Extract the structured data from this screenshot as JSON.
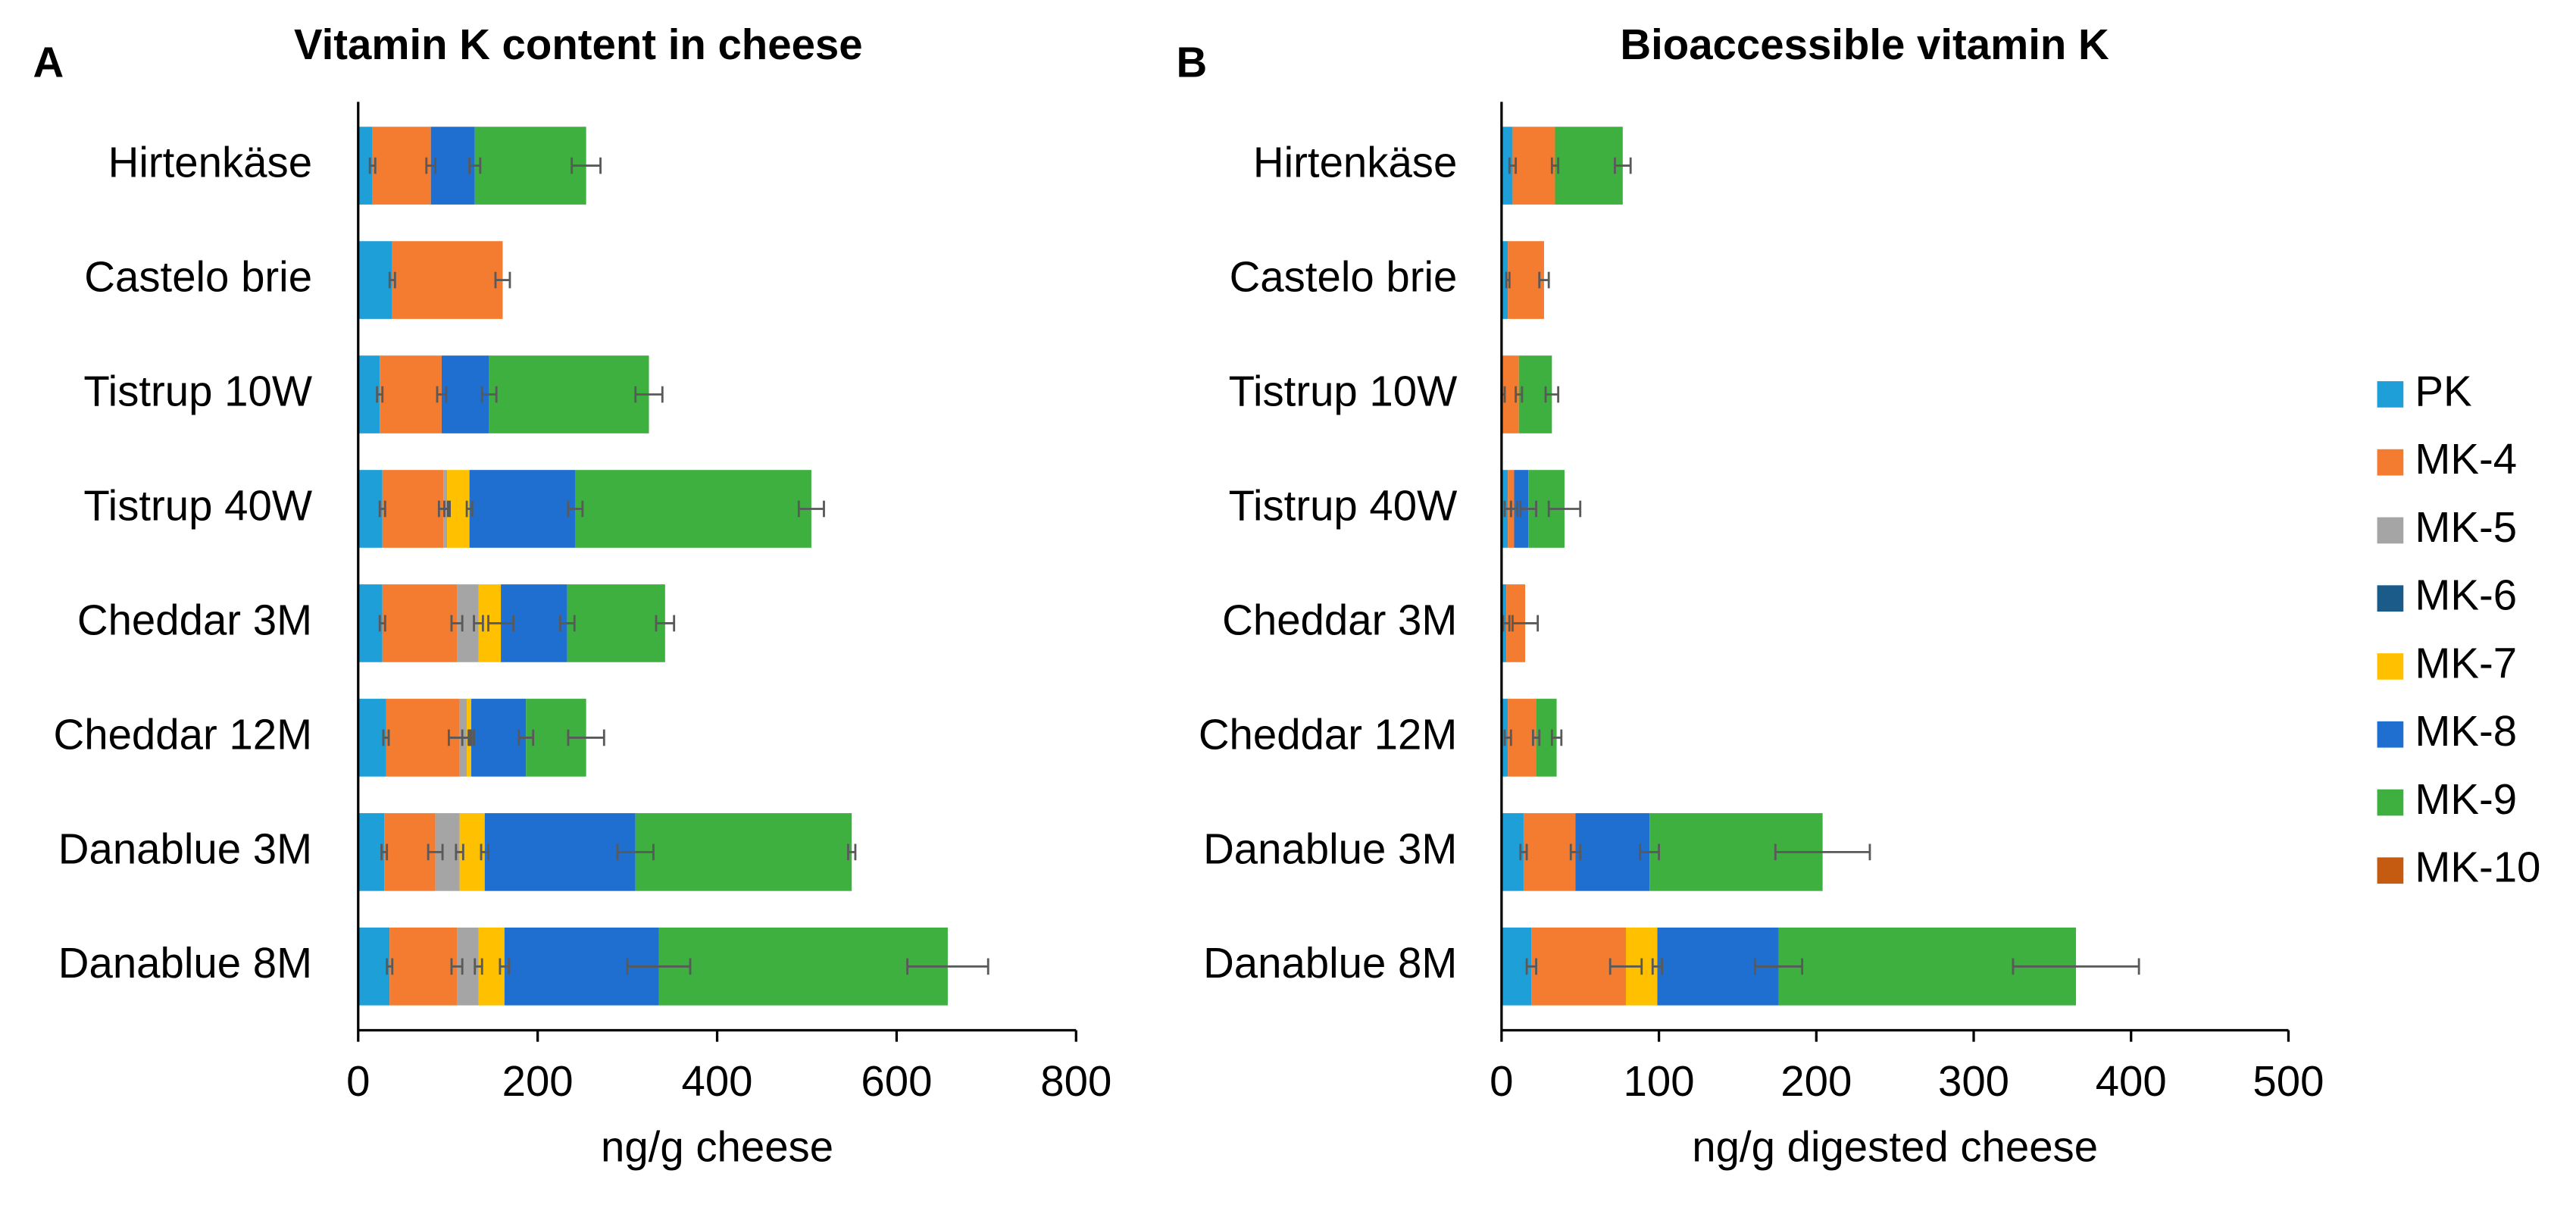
{
  "chart_data": [
    {
      "type": "bar",
      "orientation": "horizontal",
      "stacked": true,
      "panel": "A",
      "title": "Vitamin K content in cheese",
      "x_label": "ng/g cheese",
      "categories": [
        "Hirtenkäse",
        "Castelo brie",
        "Tistrup 10W",
        "Tistrup 40W",
        "Cheddar 3M",
        "Cheddar 12M",
        "Danablue 3M",
        "Danablue 8M"
      ],
      "xlim": [
        0,
        800
      ],
      "xticks": [
        0,
        200,
        400,
        600,
        800
      ],
      "series": [
        {
          "name": "PK",
          "color": "#1f9fd8",
          "values": [
            16,
            38,
            24,
            27,
            27,
            31,
            29,
            35
          ],
          "errors": [
            3,
            3,
            3,
            3,
            3,
            3,
            3,
            3
          ]
        },
        {
          "name": "MK-4",
          "color": "#f47c30",
          "values": [
            65,
            123,
            69,
            68,
            83,
            82,
            57,
            75
          ],
          "errors": [
            5,
            8,
            5,
            5,
            6,
            12,
            8,
            6
          ]
        },
        {
          "name": "MK-5",
          "color": "#a5a5a5",
          "values": [
            0,
            0,
            0,
            4,
            24,
            8,
            27,
            24
          ],
          "errors": [
            null,
            null,
            null,
            3,
            5,
            5,
            4,
            4
          ]
        },
        {
          "name": "MK-6",
          "color": "#1b5b8a",
          "values": [
            0,
            0,
            0,
            0,
            0,
            0,
            0,
            0
          ],
          "errors": [
            null,
            null,
            null,
            null,
            null,
            null,
            null,
            null
          ]
        },
        {
          "name": "MK-7",
          "color": "#ffc000",
          "values": [
            0,
            0,
            0,
            25,
            25,
            5,
            28,
            29
          ],
          "errors": [
            null,
            null,
            null,
            3,
            14,
            3,
            4,
            5
          ]
        },
        {
          "name": "MK-8",
          "color": "#1f6fd0",
          "values": [
            49,
            0,
            53,
            118,
            74,
            61,
            168,
            172
          ],
          "errors": [
            6,
            null,
            8,
            8,
            8,
            8,
            20,
            35
          ]
        },
        {
          "name": "MK-9",
          "color": "#3eb040",
          "values": [
            124,
            0,
            178,
            263,
            109,
            67,
            241,
            322
          ],
          "errors": [
            16,
            null,
            15,
            14,
            10,
            20,
            4,
            45
          ]
        },
        {
          "name": "MK-10",
          "color": "#c55a11",
          "values": [
            0,
            0,
            0,
            0,
            0,
            0,
            0,
            0
          ],
          "errors": [
            null,
            null,
            null,
            null,
            null,
            null,
            null,
            null
          ]
        }
      ]
    },
    {
      "type": "bar",
      "orientation": "horizontal",
      "stacked": true,
      "panel": "B",
      "title": "Bioaccessible vitamin K",
      "x_label": "ng/g digested cheese",
      "legend": "right",
      "categories": [
        "Hirtenkäse",
        "Castelo brie",
        "Tistrup 10W",
        "Tistrup 40W",
        "Cheddar 3M",
        "Cheddar 12M",
        "Danablue 3M",
        "Danablue 8M"
      ],
      "xlim": [
        0,
        500
      ],
      "xticks": [
        0,
        100,
        200,
        300,
        400,
        500
      ],
      "series": [
        {
          "name": "PK",
          "color": "#1f9fd8",
          "values": [
            7,
            4,
            1,
            4,
            3,
            4,
            14,
            19
          ],
          "errors": [
            2,
            1,
            1,
            2,
            2,
            2,
            2,
            3
          ]
        },
        {
          "name": "MK-4",
          "color": "#f47c30",
          "values": [
            27,
            23,
            10,
            4,
            12,
            18,
            33,
            60
          ],
          "errors": [
            2,
            3,
            2,
            2,
            8,
            2,
            3,
            10
          ]
        },
        {
          "name": "MK-5",
          "color": "#a5a5a5",
          "values": [
            0,
            0,
            0,
            0,
            0,
            0,
            0,
            0
          ],
          "errors": [
            null,
            null,
            null,
            null,
            null,
            null,
            null,
            null
          ]
        },
        {
          "name": "MK-6",
          "color": "#1b5b8a",
          "values": [
            0,
            0,
            0,
            0,
            0,
            0,
            0,
            0
          ],
          "errors": [
            null,
            null,
            null,
            null,
            null,
            null,
            null,
            null
          ]
        },
        {
          "name": "MK-7",
          "color": "#ffc000",
          "values": [
            0,
            0,
            0,
            0,
            0,
            0,
            0,
            20
          ],
          "errors": [
            null,
            null,
            null,
            null,
            null,
            null,
            null,
            3
          ]
        },
        {
          "name": "MK-8",
          "color": "#1f6fd0",
          "values": [
            0,
            0,
            0,
            9,
            0,
            0,
            47,
            77
          ],
          "errors": [
            null,
            null,
            null,
            5,
            null,
            null,
            6,
            15
          ]
        },
        {
          "name": "MK-9",
          "color": "#3eb040",
          "values": [
            43,
            0,
            21,
            23,
            0,
            13,
            110,
            189
          ],
          "errors": [
            5,
            null,
            4,
            10,
            null,
            3,
            30,
            40
          ]
        },
        {
          "name": "MK-10",
          "color": "#c55a11",
          "values": [
            0,
            0,
            0,
            0,
            0,
            0,
            0,
            0
          ],
          "errors": [
            null,
            null,
            null,
            null,
            null,
            null,
            null,
            null
          ]
        }
      ]
    }
  ]
}
